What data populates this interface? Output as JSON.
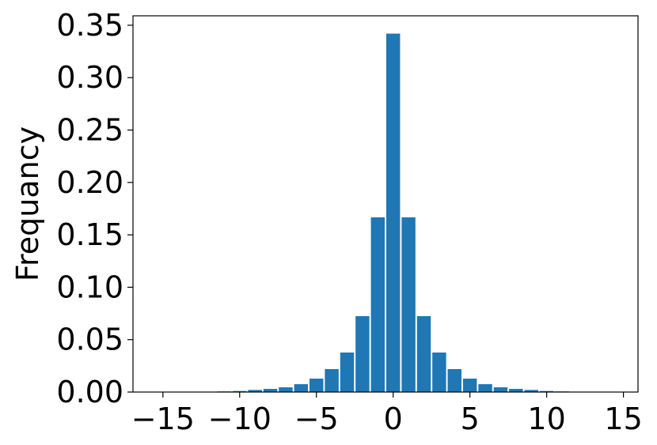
{
  "chart_data": {
    "type": "bar",
    "y_label": "Frequancy",
    "color": "#1f77b4",
    "x": [
      -15,
      -14,
      -13,
      -12,
      -11,
      -10,
      -9,
      -8,
      -7,
      -6,
      -5,
      -4,
      -3,
      -2,
      -1,
      0,
      1,
      2,
      3,
      4,
      5,
      6,
      7,
      8,
      9,
      10,
      11,
      12,
      13,
      14
    ],
    "values": [
      0.0001,
      0.0001,
      0.0002,
      0.0003,
      0.0006,
      0.001,
      0.002,
      0.003,
      0.0045,
      0.0075,
      0.0128,
      0.0219,
      0.0377,
      0.0724,
      0.1667,
      0.342,
      0.1667,
      0.0724,
      0.0377,
      0.0219,
      0.0128,
      0.0075,
      0.0045,
      0.003,
      0.002,
      0.001,
      0.0006,
      0.0003,
      0.0002,
      0.0001
    ],
    "xlim": [
      -16.95,
      15.95
    ],
    "xticks": [
      {
        "value": -15,
        "label": "−15"
      },
      {
        "value": -10,
        "label": "−10"
      },
      {
        "value": -5,
        "label": "−5"
      },
      0,
      5,
      10,
      15
    ],
    "ylim": [
      0,
      0.359
    ],
    "yticks": [
      {
        "value": 0,
        "label": "0.00"
      },
      {
        "value": 0.05,
        "label": "0.05"
      },
      {
        "value": 0.1,
        "label": "0.10"
      },
      {
        "value": 0.15,
        "label": "0.15"
      },
      {
        "value": 0.2,
        "label": "0.20"
      },
      {
        "value": 0.25,
        "label": "0.25"
      },
      {
        "value": 0.3,
        "label": "0.30"
      },
      {
        "value": 0.35,
        "label": "0.35"
      }
    ]
  }
}
